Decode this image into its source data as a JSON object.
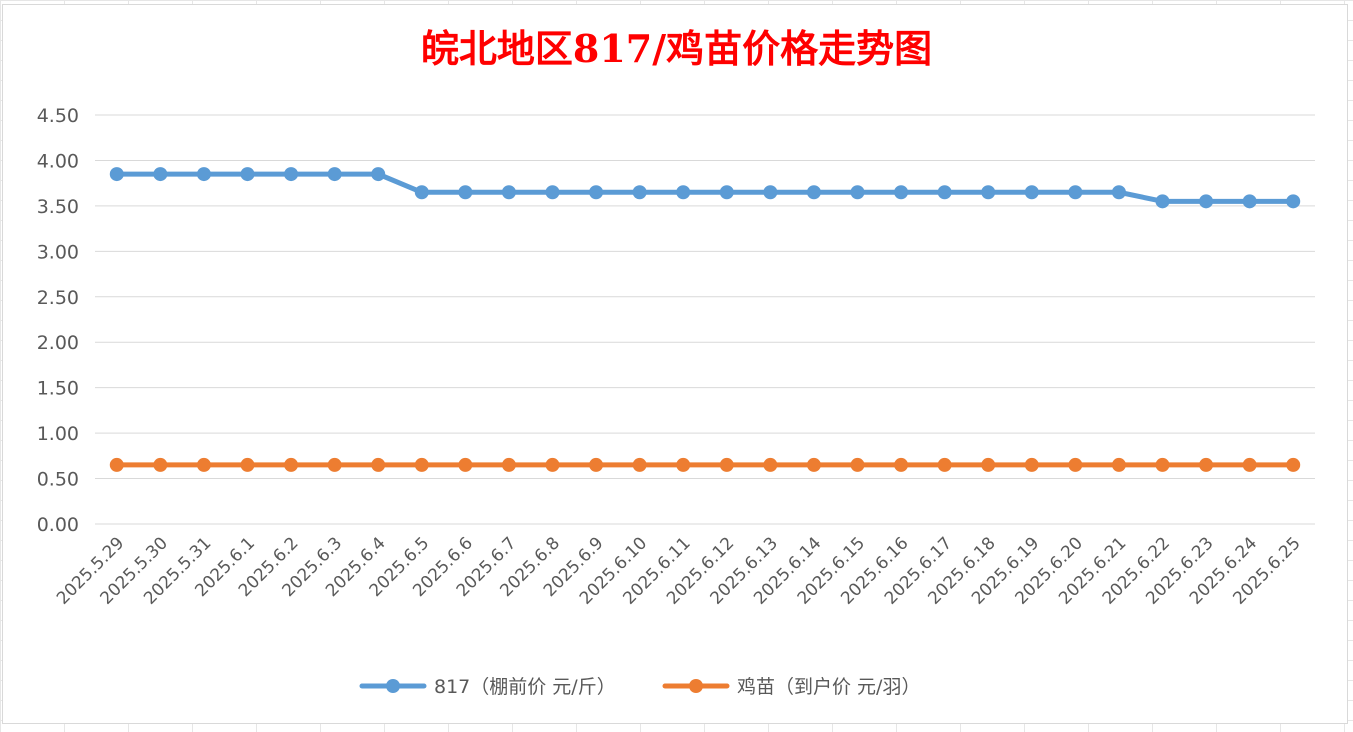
{
  "chart_data": {
    "type": "line",
    "title": "皖北地区817/鸡苗价格走势图",
    "xlabel": "",
    "ylabel": "",
    "ylim": [
      0,
      4.5
    ],
    "yticks": [
      "0.00",
      "0.50",
      "1.00",
      "1.50",
      "2.00",
      "2.50",
      "3.00",
      "3.50",
      "4.00",
      "4.50"
    ],
    "grid": true,
    "legend_position": "bottom",
    "categories": [
      "2025.5.29",
      "2025.5.30",
      "2025.5.31",
      "2025.6.1",
      "2025.6.2",
      "2025.6.3",
      "2025.6.4",
      "2025.6.5",
      "2025.6.6",
      "2025.6.7",
      "2025.6.8",
      "2025.6.9",
      "2025.6.10",
      "2025.6.11",
      "2025.6.12",
      "2025.6.13",
      "2025.6.14",
      "2025.6.15",
      "2025.6.16",
      "2025.6.17",
      "2025.6.18",
      "2025.6.19",
      "2025.6.20",
      "2025.6.21",
      "2025.6.22",
      "2025.6.23",
      "2025.6.24",
      "2025.6.25"
    ],
    "series": [
      {
        "name": "817（棚前价 元/斤）",
        "color": "#5b9bd5",
        "values": [
          3.85,
          3.85,
          3.85,
          3.85,
          3.85,
          3.85,
          3.85,
          3.65,
          3.65,
          3.65,
          3.65,
          3.65,
          3.65,
          3.65,
          3.65,
          3.65,
          3.65,
          3.65,
          3.65,
          3.65,
          3.65,
          3.65,
          3.65,
          3.65,
          3.55,
          3.55,
          3.55,
          3.55
        ]
      },
      {
        "name": "鸡苗（到户价 元/羽）",
        "color": "#ed7d31",
        "values": [
          0.65,
          0.65,
          0.65,
          0.65,
          0.65,
          0.65,
          0.65,
          0.65,
          0.65,
          0.65,
          0.65,
          0.65,
          0.65,
          0.65,
          0.65,
          0.65,
          0.65,
          0.65,
          0.65,
          0.65,
          0.65,
          0.65,
          0.65,
          0.65,
          0.65,
          0.65,
          0.65,
          0.65
        ]
      }
    ]
  }
}
